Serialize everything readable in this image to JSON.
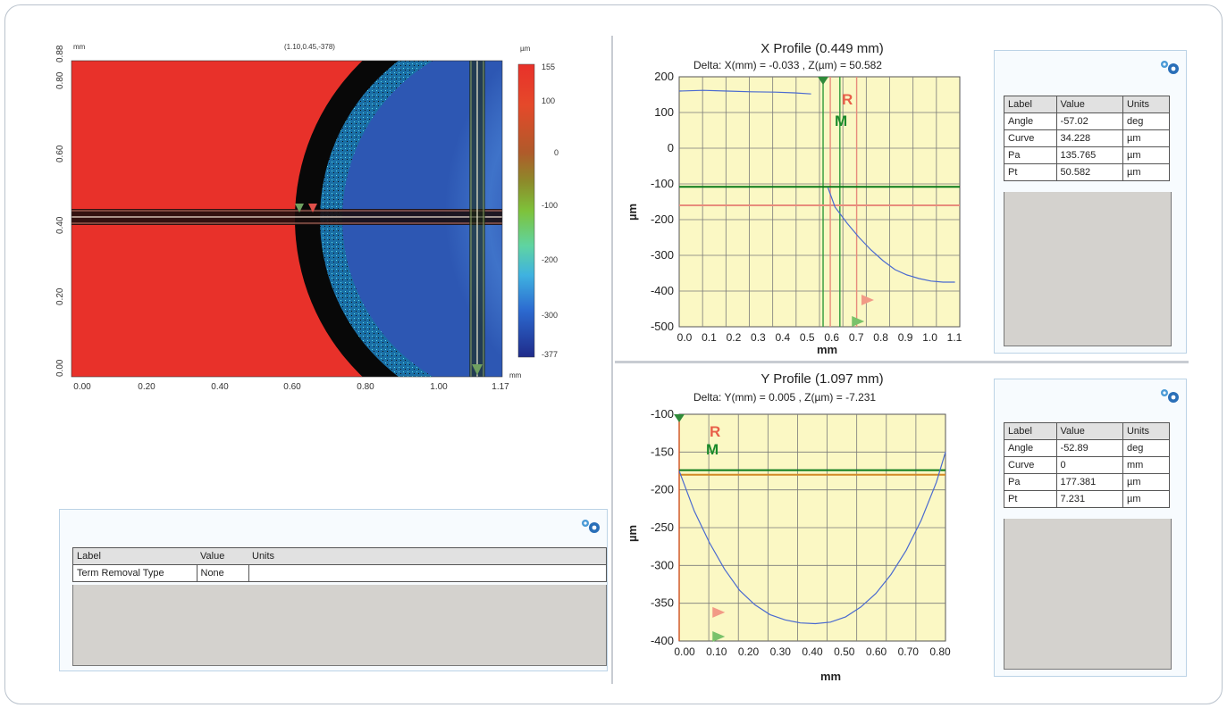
{
  "surface_map": {
    "units_corner": "mm",
    "cursor_readout": "(1.10,0.45,-378)",
    "colorbar_unit": "µm",
    "colorbar_ticks": [
      "155",
      "100",
      "0",
      "-100",
      "-200",
      "-300",
      "-377"
    ],
    "x_unit": "mm",
    "x_ticks": [
      "0.00",
      "0.20",
      "0.40",
      "0.60",
      "0.80",
      "1.00",
      "1.17"
    ],
    "y_ticks": [
      "0.00",
      "0.20",
      "0.40",
      "0.60",
      "0.80",
      "0.88"
    ],
    "colors": {
      "red": "#e8312a",
      "black": "#080808",
      "blue": "#213a9b",
      "cyan": "#46c6df"
    }
  },
  "term_panel": {
    "headers": [
      "Label",
      "Value",
      "Units"
    ],
    "rows": [
      [
        "Term Removal Type",
        "None",
        ""
      ]
    ]
  },
  "x_profile": {
    "title": "X Profile (0.449 mm)",
    "delta": "Delta:  X(mm) = -0.033 ,  Z(µm) = 50.582",
    "ylabel": "µm",
    "xlabel": "mm",
    "marker_r": "R",
    "marker_m": "M",
    "y_ticks": [
      "200",
      "100",
      "0",
      "-100",
      "-200",
      "-300",
      "-400",
      "-500"
    ],
    "x_ticks": [
      "0.0",
      "0.1",
      "0.2",
      "0.3",
      "0.4",
      "0.5",
      "0.6",
      "0.7",
      "0.8",
      "0.9",
      "1.0",
      "1.1"
    ],
    "table": {
      "headers": [
        "Label",
        "Value",
        "Units"
      ],
      "rows": [
        [
          "Angle",
          "-57.02",
          "deg"
        ],
        [
          "Curve",
          "34.228",
          "µm"
        ],
        [
          "Pa",
          "135.765",
          "µm"
        ],
        [
          "Pt",
          "50.582",
          "µm"
        ]
      ]
    }
  },
  "y_profile": {
    "title": "Y Profile (1.097 mm)",
    "delta": "Delta:  Y(mm) = 0.005 ,  Z(µm) = -7.231",
    "ylabel": "µm",
    "xlabel": "mm",
    "marker_r": "R",
    "marker_m": "M",
    "y_ticks": [
      "-100",
      "-150",
      "-200",
      "-250",
      "-300",
      "-350",
      "-400"
    ],
    "x_ticks": [
      "0.00",
      "0.10",
      "0.20",
      "0.30",
      "0.40",
      "0.50",
      "0.60",
      "0.70",
      "0.80"
    ],
    "table": {
      "headers": [
        "Label",
        "Value",
        "Units"
      ],
      "rows": [
        [
          "Angle",
          "-52.89",
          "deg"
        ],
        [
          "Curve",
          "0",
          "mm"
        ],
        [
          "Pa",
          "177.381",
          "µm"
        ],
        [
          "Pt",
          "7.231",
          "µm"
        ]
      ]
    }
  },
  "chart_data": [
    {
      "type": "line",
      "title": "X Profile (0.449 mm)",
      "xlabel": "mm",
      "ylabel": "µm",
      "xlim": [
        0,
        1.17
      ],
      "ylim": [
        -500,
        200
      ],
      "grid": true,
      "series": [
        {
          "x": [
            0.0,
            0.1,
            0.2,
            0.3,
            0.4,
            0.48,
            0.55
          ],
          "y": [
            160,
            162,
            160,
            158,
            157,
            155,
            152
          ]
        },
        {
          "x": [
            0.62,
            0.65,
            0.7,
            0.75,
            0.8,
            0.85,
            0.9,
            0.95,
            1.0,
            1.05,
            1.1,
            1.15
          ],
          "y": [
            -110,
            -165,
            -210,
            -250,
            -285,
            -315,
            -340,
            -355,
            -365,
            -372,
            -375,
            -375
          ]
        }
      ],
      "hlines": [
        {
          "y": -108,
          "color": "#0a7a18"
        },
        {
          "y": -160,
          "color": "#e88c7c"
        }
      ],
      "vlines": [
        {
          "x": 0.6,
          "color": "#2f9a3a"
        },
        {
          "x": 0.63,
          "color": "#e88c7c"
        },
        {
          "x": 0.67,
          "color": "#2f9a3a"
        },
        {
          "x": 0.74,
          "color": "#e88c7c"
        }
      ]
    },
    {
      "type": "line",
      "title": "Y Profile (1.097 mm)",
      "xlabel": "mm",
      "ylabel": "µm",
      "xlim": [
        0,
        0.88
      ],
      "ylim": [
        -400,
        -100
      ],
      "grid": true,
      "series": [
        {
          "x": [
            0.0,
            0.05,
            0.1,
            0.15,
            0.2,
            0.25,
            0.3,
            0.35,
            0.4,
            0.45,
            0.5,
            0.55,
            0.6,
            0.65,
            0.7,
            0.75,
            0.8,
            0.85,
            0.88
          ],
          "y": [
            -175,
            -228,
            -270,
            -305,
            -333,
            -352,
            -365,
            -372,
            -376,
            -377,
            -375,
            -368,
            -355,
            -337,
            -312,
            -280,
            -240,
            -190,
            -150
          ]
        }
      ],
      "hlines": [
        {
          "y": -174,
          "color": "#0a7a18"
        },
        {
          "y": -180,
          "color": "#d28a24"
        }
      ],
      "vlines": [
        {
          "x": 0.0,
          "color": "#d05020"
        }
      ]
    }
  ]
}
